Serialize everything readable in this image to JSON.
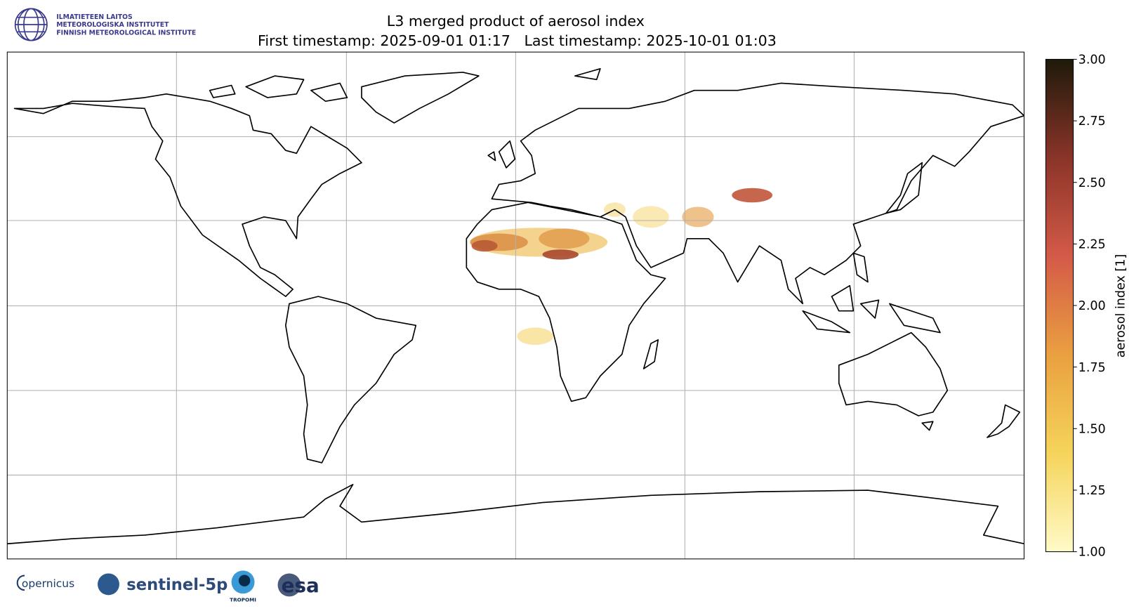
{
  "header": {
    "logo_lines": [
      "ILMATIETEEN LAITOS",
      "METEOROLOGISKA INSTITUTET",
      "FINNISH METEOROLOGICAL INSTITUTE"
    ],
    "title": "L3 merged product of aerosol index",
    "subtitle": "First timestamp: 2025-09-01 01:17   Last timestamp: 2025-10-01 01:03"
  },
  "colorbar": {
    "label": "aerosol index [1]",
    "lim": [
      1,
      3
    ],
    "colors": [
      "#fffac8",
      "#f5d45a",
      "#eaa040",
      "#d45a48",
      "#8a3428",
      "#1e1a0a"
    ],
    "ticks": [
      {
        "value": 1,
        "label": "1.00"
      },
      {
        "value": 1.25,
        "label": "1.25"
      },
      {
        "value": 1.5,
        "label": "1.50"
      },
      {
        "value": 1.75,
        "label": "1.75"
      },
      {
        "value": 2,
        "label": "2.00"
      },
      {
        "value": 2.25,
        "label": "2.25"
      },
      {
        "value": 2.5,
        "label": "2.50"
      },
      {
        "value": 2.75,
        "label": "2.75"
      },
      {
        "value": 3,
        "label": "3.00"
      }
    ]
  },
  "footer": {
    "logos": [
      "opernicus",
      "sentinel-5p",
      "TROPOMI",
      "esa"
    ]
  }
}
